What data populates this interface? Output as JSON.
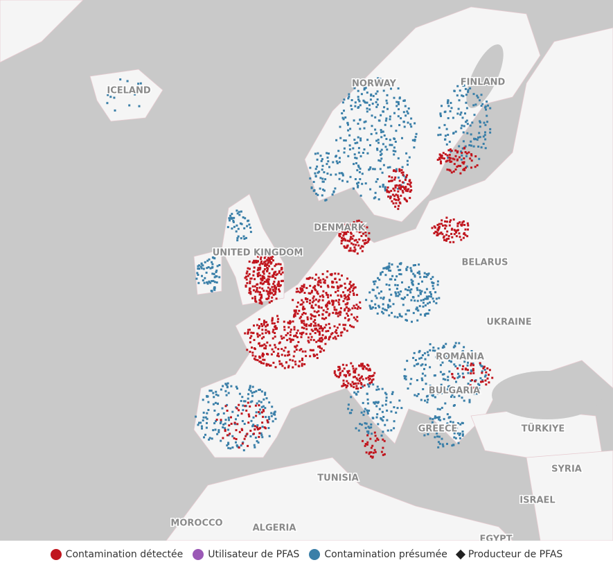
{
  "map": {
    "labels": [
      {
        "text": "ICELAND"
      },
      {
        "text": "NORWAY"
      },
      {
        "text": "FINLAND"
      },
      {
        "text": "DENMARK"
      },
      {
        "text": "UNITED KINGDOM"
      },
      {
        "text": "BELARUS"
      },
      {
        "text": "UKRAINE"
      },
      {
        "text": "ROMANIA"
      },
      {
        "text": "BULGARIA"
      },
      {
        "text": "GREECE"
      },
      {
        "text": "TÜRKIYE"
      },
      {
        "text": "SYRIA"
      },
      {
        "text": "ISRAEL"
      },
      {
        "text": "TUNISIA"
      },
      {
        "text": "MOROCCO"
      },
      {
        "text": "ALGERIA"
      },
      {
        "text": "EGYPT"
      }
    ]
  },
  "legend": {
    "items": [
      {
        "label": "Contamination détectée",
        "color": "#c0161e",
        "shape": "circle"
      },
      {
        "label": "Utilisateur de PFAS",
        "color": "#9b59b6",
        "shape": "circle"
      },
      {
        "label": "Contamination présumée",
        "color": "#3a7fa8",
        "shape": "circle"
      },
      {
        "label": "Producteur de PFAS",
        "color": "#222222",
        "shape": "diamond"
      }
    ]
  }
}
